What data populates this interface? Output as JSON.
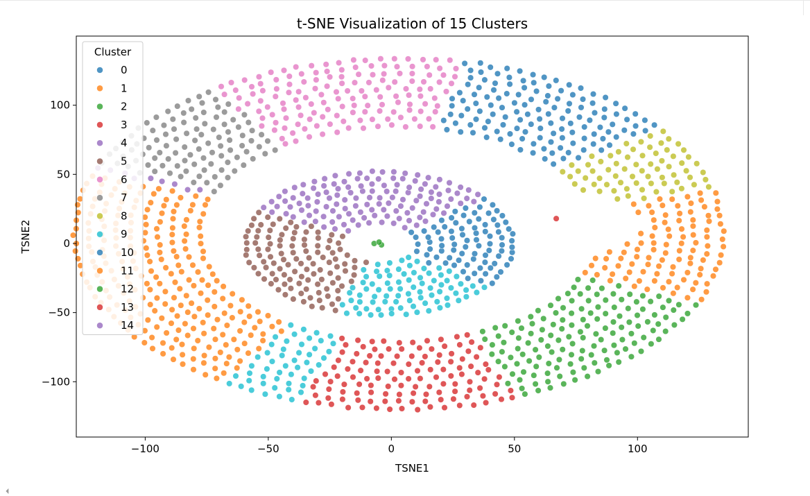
{
  "ui": {
    "scroll_caret_icon": "caret-left-icon",
    "scroll_caret_glyph": "⏴"
  },
  "chart_data": {
    "type": "scatter",
    "title": "t-SNE Visualization of 15 Clusters",
    "xlabel": "TSNE1",
    "ylabel": "TSNE2",
    "xlim": [
      -128,
      145
    ],
    "ylim": [
      -140,
      150
    ],
    "xticks": [
      -100,
      -50,
      0,
      50,
      100
    ],
    "xtick_labels": [
      "−100",
      "−50",
      "0",
      "50",
      "100"
    ],
    "yticks": [
      -100,
      -50,
      0,
      50,
      100
    ],
    "ytick_labels": [
      "−100",
      "−50",
      "0",
      "50",
      "100"
    ],
    "grid": false,
    "legend": {
      "title": "Cluster",
      "placement": "top-left"
    },
    "marker_alpha": 0.78,
    "marker_edge": "#ffffff",
    "series": [
      {
        "name": "0",
        "color": "#1f77b4"
      },
      {
        "name": "1",
        "color": "#ff7f0e"
      },
      {
        "name": "2",
        "color": "#2ca02c"
      },
      {
        "name": "3",
        "color": "#d62728"
      },
      {
        "name": "4",
        "color": "#9467bd"
      },
      {
        "name": "5",
        "color": "#8c564b"
      },
      {
        "name": "6",
        "color": "#e377c2"
      },
      {
        "name": "7",
        "color": "#7f7f7f"
      },
      {
        "name": "8",
        "color": "#bcbd22"
      },
      {
        "name": "9",
        "color": "#17becf"
      },
      {
        "name": "10",
        "color": "#1f77b4"
      },
      {
        "name": "11",
        "color": "#ff7f0e"
      },
      {
        "name": "12",
        "color": "#2ca02c"
      },
      {
        "name": "13",
        "color": "#d62728"
      },
      {
        "name": "14",
        "color": "#9467bd"
      }
    ],
    "regions": {
      "outer_ring": {
        "center": [
          3,
          7
        ],
        "radii_x": [
          14,
          133
        ],
        "radii_y": [
          14,
          128
        ],
        "spacing": 5.6,
        "angle_labels_deg": {
          "4": [
            158,
            200
          ],
          "7": [
            126,
            158
          ],
          "6": [
            78,
            126
          ],
          "0": [
            36,
            78
          ],
          "8": [
            14,
            36
          ],
          "11": [
            -22,
            14
          ],
          "12": [
            -68,
            -22
          ],
          "13": [
            -108,
            -68
          ],
          "9": [
            -124,
            -108
          ],
          "1": [
            -200,
            -124
          ]
        }
      },
      "inner_disc": {
        "center": [
          -5,
          0
        ],
        "radii": [
          16,
          58
        ],
        "spacing": 4.8,
        "angle_labels_deg": {
          "14": [
            38,
            155
          ],
          "5": [
            155,
            250
          ],
          "9": [
            250,
            325
          ],
          "10": [
            -35,
            38
          ]
        }
      },
      "hole_right": {
        "center": [
          68,
          15
        ],
        "radii": [
          34,
          22
        ]
      },
      "singles": [
        {
          "label": "3",
          "x": 67,
          "y": 18
        },
        {
          "label": "2",
          "x": -7,
          "y": 0
        },
        {
          "label": "2",
          "x": -4,
          "y": -1
        },
        {
          "label": "2",
          "x": -5,
          "y": 1
        }
      ]
    }
  }
}
